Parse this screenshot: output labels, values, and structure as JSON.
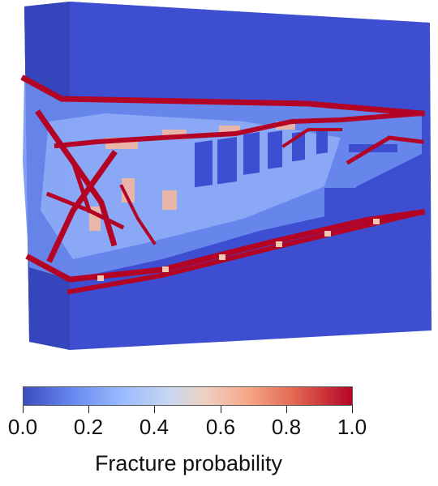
{
  "colorbar": {
    "title": "Fracture probability",
    "ticks": [
      "0.0",
      "0.2",
      "0.4",
      "0.6",
      "0.8",
      "1.0"
    ],
    "colormap": [
      "#3b4cc0",
      "#6788ee",
      "#9abbff",
      "#c9d7f0",
      "#edd1c2",
      "#f7a889",
      "#e26952",
      "#b40426"
    ]
  },
  "colors": {
    "background_block": "#3b4ccc",
    "block_top": "#4a5de0",
    "block_side": "#2f3fb0",
    "crack": "#b40426"
  }
}
